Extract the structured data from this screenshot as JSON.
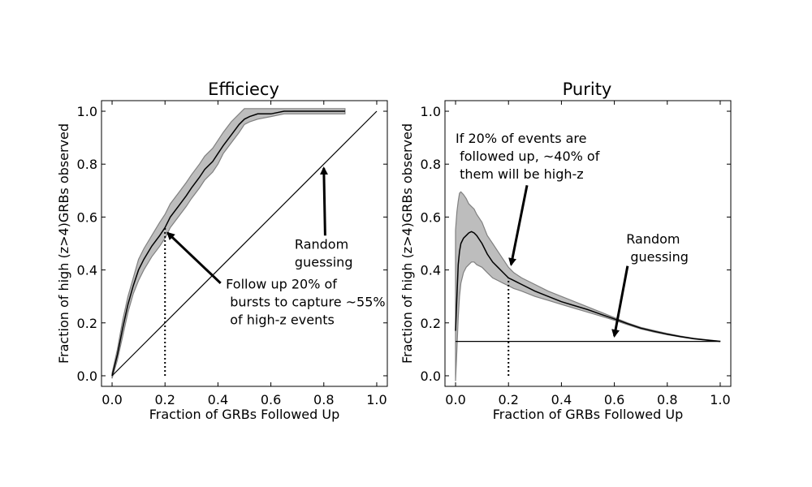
{
  "chart_data": [
    {
      "type": "line",
      "title": "Efficiecy",
      "xlabel": "Fraction of GRBs Followed Up",
      "ylabel": "Fraction of high (z>4)GRBs observed",
      "xlim": [
        -0.04,
        1.04
      ],
      "ylim": [
        -0.04,
        1.04
      ],
      "xticks": [
        0.0,
        0.2,
        0.4,
        0.6,
        0.8,
        1.0
      ],
      "xtick_labels": [
        "0.0",
        "0.2",
        "0.4",
        "0.6",
        "0.8",
        "1.0"
      ],
      "yticks": [
        0.0,
        0.2,
        0.4,
        0.6,
        0.8,
        1.0
      ],
      "ytick_labels": [
        "0.0",
        "0.2",
        "0.4",
        "0.6",
        "0.8",
        "1.0"
      ],
      "grid": false,
      "band_color": "#bdbdbd",
      "band_edge_color": "#808080",
      "line_color": "#000000",
      "series": [
        {
          "x": [
            0.0,
            0.02,
            0.04,
            0.06,
            0.08,
            0.1,
            0.12,
            0.15,
            0.18,
            0.2,
            0.22,
            0.25,
            0.28,
            0.3,
            0.33,
            0.35,
            0.38,
            0.4,
            0.42,
            0.45,
            0.48,
            0.5,
            0.52,
            0.55,
            0.6,
            0.65,
            0.7,
            0.75,
            0.8,
            0.85,
            0.88
          ],
          "y": [
            0.0,
            0.08,
            0.18,
            0.27,
            0.34,
            0.4,
            0.44,
            0.49,
            0.53,
            0.56,
            0.6,
            0.64,
            0.68,
            0.71,
            0.75,
            0.78,
            0.81,
            0.84,
            0.87,
            0.91,
            0.95,
            0.97,
            0.98,
            0.99,
            0.99,
            1.0,
            1.0,
            1.0,
            1.0,
            1.0,
            1.0
          ],
          "lower": [
            -0.01,
            0.06,
            0.15,
            0.24,
            0.31,
            0.36,
            0.4,
            0.45,
            0.49,
            0.52,
            0.56,
            0.6,
            0.64,
            0.67,
            0.71,
            0.74,
            0.77,
            0.8,
            0.84,
            0.88,
            0.92,
            0.95,
            0.96,
            0.97,
            0.98,
            0.99,
            0.99,
            0.99,
            0.99,
            0.99,
            0.99
          ],
          "upper": [
            0.01,
            0.1,
            0.21,
            0.3,
            0.37,
            0.44,
            0.48,
            0.53,
            0.58,
            0.61,
            0.65,
            0.69,
            0.73,
            0.76,
            0.8,
            0.83,
            0.86,
            0.89,
            0.92,
            0.96,
            0.99,
            1.01,
            1.01,
            1.01,
            1.01,
            1.01,
            1.01,
            1.01,
            1.01,
            1.01,
            1.01
          ]
        },
        {
          "x": [
            0.0,
            1.0
          ],
          "y": [
            0.0,
            1.0
          ]
        }
      ],
      "markers": [
        {
          "x": 0.2,
          "y_from": 0.0,
          "y_to": 0.56
        }
      ],
      "annotations": [
        {
          "lines": [
            "Follow up 20% of",
            " bursts to capture ~55%",
            " of high-z events"
          ],
          "text_x": 0.43,
          "text_y": 0.33,
          "arrow_from": [
            0.41,
            0.35
          ],
          "arrow_to": [
            0.21,
            0.54
          ]
        },
        {
          "lines": [
            "Random",
            "guessing"
          ],
          "text_x": 0.69,
          "text_y": 0.48,
          "arrow_from": [
            0.805,
            0.53
          ],
          "arrow_to": [
            0.8,
            0.785
          ]
        }
      ]
    },
    {
      "type": "line",
      "title": "Purity",
      "xlabel": "Fraction of GRBs Followed Up",
      "ylabel": "Fraction of high (z>4)GRBs observed",
      "xlim": [
        -0.04,
        1.04
      ],
      "ylim": [
        -0.04,
        1.04
      ],
      "xticks": [
        0.0,
        0.2,
        0.4,
        0.6,
        0.8,
        1.0
      ],
      "xtick_labels": [
        "0.0",
        "0.2",
        "0.4",
        "0.6",
        "0.8",
        "1.0"
      ],
      "yticks": [
        0.0,
        0.2,
        0.4,
        0.6,
        0.8,
        1.0
      ],
      "ytick_labels": [
        "0.0",
        "0.2",
        "0.4",
        "0.6",
        "0.8",
        "1.0"
      ],
      "grid": false,
      "band_color": "#bdbdbd",
      "band_edge_color": "#808080",
      "line_color": "#000000",
      "series": [
        {
          "x": [
            0.0,
            0.005,
            0.01,
            0.015,
            0.02,
            0.03,
            0.04,
            0.05,
            0.06,
            0.07,
            0.08,
            0.1,
            0.12,
            0.14,
            0.16,
            0.18,
            0.2,
            0.22,
            0.25,
            0.3,
            0.35,
            0.4,
            0.45,
            0.5,
            0.55,
            0.6,
            0.65,
            0.7,
            0.75,
            0.8,
            0.85,
            0.9,
            0.95,
            1.0
          ],
          "y": [
            0.17,
            0.3,
            0.42,
            0.47,
            0.5,
            0.52,
            0.53,
            0.54,
            0.545,
            0.54,
            0.53,
            0.5,
            0.46,
            0.43,
            0.41,
            0.39,
            0.37,
            0.36,
            0.345,
            0.32,
            0.3,
            0.28,
            0.265,
            0.25,
            0.232,
            0.215,
            0.197,
            0.18,
            0.168,
            0.157,
            0.148,
            0.14,
            0.135,
            0.13
          ],
          "lower": [
            -0.02,
            0.1,
            0.22,
            0.3,
            0.35,
            0.39,
            0.41,
            0.42,
            0.43,
            0.43,
            0.42,
            0.41,
            0.39,
            0.37,
            0.36,
            0.35,
            0.34,
            0.33,
            0.32,
            0.3,
            0.285,
            0.27,
            0.255,
            0.24,
            0.225,
            0.21,
            0.193,
            0.177,
            0.165,
            0.155,
            0.147,
            0.139,
            0.134,
            0.13
          ],
          "upper": [
            0.55,
            0.62,
            0.66,
            0.69,
            0.695,
            0.685,
            0.67,
            0.65,
            0.64,
            0.63,
            0.61,
            0.58,
            0.53,
            0.5,
            0.47,
            0.44,
            0.41,
            0.39,
            0.37,
            0.345,
            0.32,
            0.3,
            0.28,
            0.26,
            0.24,
            0.22,
            0.2,
            0.183,
            0.171,
            0.16,
            0.15,
            0.142,
            0.136,
            0.131
          ]
        },
        {
          "x": [
            0.0,
            1.0
          ],
          "y": [
            0.13,
            0.13
          ]
        }
      ],
      "markers": [
        {
          "x": 0.2,
          "y_from": 0.0,
          "y_to": 0.37
        }
      ],
      "annotations": [
        {
          "lines": [
            "If 20% of events are",
            " followed up, ~40% of",
            " them will be high-z"
          ],
          "text_x": 0.0,
          "text_y": 0.88,
          "arrow_from": [
            0.27,
            0.72
          ],
          "arrow_to": [
            0.21,
            0.42
          ]
        },
        {
          "lines": [
            "Random",
            " guessing"
          ],
          "text_x": 0.645,
          "text_y": 0.5,
          "arrow_from": [
            0.65,
            0.415
          ],
          "arrow_to": [
            0.6,
            0.15
          ]
        }
      ]
    }
  ]
}
